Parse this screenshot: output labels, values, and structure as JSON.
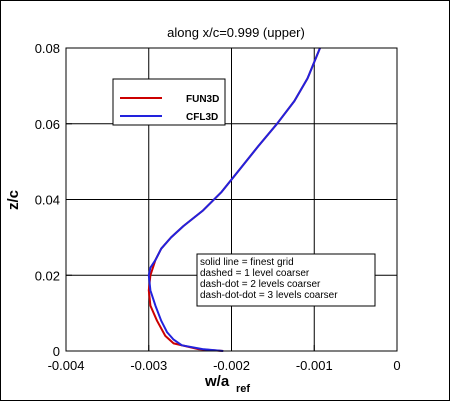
{
  "chart_data": {
    "type": "line",
    "title": "along x/c=0.999 (upper)",
    "xlabel_main": "w/a",
    "xlabel_sub": "ref",
    "ylabel": "z/c",
    "xlim": [
      -0.004,
      0
    ],
    "ylim": [
      0,
      0.08
    ],
    "xticks": [
      -0.004,
      -0.003,
      -0.002,
      -0.001,
      0
    ],
    "xtick_labels": [
      "-0.004",
      "-0.003",
      "-0.002",
      "-0.001",
      "0"
    ],
    "yticks": [
      0,
      0.02,
      0.04,
      0.06,
      0.08
    ],
    "ytick_labels": [
      "0",
      "0.02",
      "0.04",
      "0.06",
      "0.08"
    ],
    "grid": true,
    "legend_position": "upper-left",
    "series": [
      {
        "name": "FUN3D",
        "color": "#cc0000",
        "x": [
          -0.0021,
          -0.0024,
          -0.0027,
          -0.0028,
          -0.0029,
          -0.00298,
          -0.003,
          -0.00298,
          -0.00292,
          -0.00285,
          -0.00273,
          -0.00258,
          -0.00235,
          -0.00212,
          -0.0019,
          -0.00168,
          -0.00145,
          -0.00124,
          -0.00108,
          -0.00093
        ],
        "y": [
          0,
          0.0005,
          0.002,
          0.004,
          0.008,
          0.012,
          0.016,
          0.02,
          0.024,
          0.027,
          0.03,
          0.033,
          0.037,
          0.042,
          0.048,
          0.054,
          0.06,
          0.066,
          0.072,
          0.08
        ]
      },
      {
        "name": "CFL3D",
        "color": "#2222dd",
        "x": [
          -0.0021,
          -0.00235,
          -0.0026,
          -0.0027,
          -0.00278,
          -0.00285,
          -0.00292,
          -0.00298,
          -0.003,
          -0.00298,
          -0.00292,
          -0.00285,
          -0.00273,
          -0.00258,
          -0.00235,
          -0.00212,
          -0.0019,
          -0.00168,
          -0.00145,
          -0.00124,
          -0.00108,
          -0.00093
        ],
        "y": [
          0,
          0.0005,
          0.0015,
          0.003,
          0.005,
          0.008,
          0.012,
          0.016,
          0.02,
          0.022,
          0.024,
          0.027,
          0.03,
          0.033,
          0.037,
          0.042,
          0.048,
          0.054,
          0.06,
          0.066,
          0.072,
          0.08
        ]
      }
    ],
    "annotation_lines": [
      "solid line = finest grid",
      "dashed = 1 level coarser",
      "dash-dot = 2 levels coarser",
      "dash-dot-dot = 3 levels coarser"
    ]
  }
}
